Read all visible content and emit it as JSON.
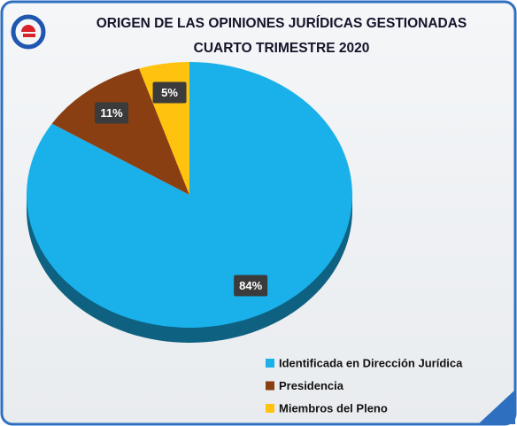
{
  "chart_data": {
    "type": "pie",
    "title": "ORIGEN DE LAS OPINIONES JURÍDICAS GESTIONADAS",
    "subtitle": "CUARTO TRIMESTRE 2020",
    "categories": [
      "Identificada en Dirección Jurídica",
      "Presidencia",
      "Miembros del Pleno"
    ],
    "values": [
      84,
      11,
      5
    ],
    "value_labels": [
      "84%",
      "11%",
      "5%"
    ],
    "colors": [
      "#1ab0ea",
      "#8a3f12",
      "#ffc20e"
    ],
    "legend": "lower right"
  }
}
